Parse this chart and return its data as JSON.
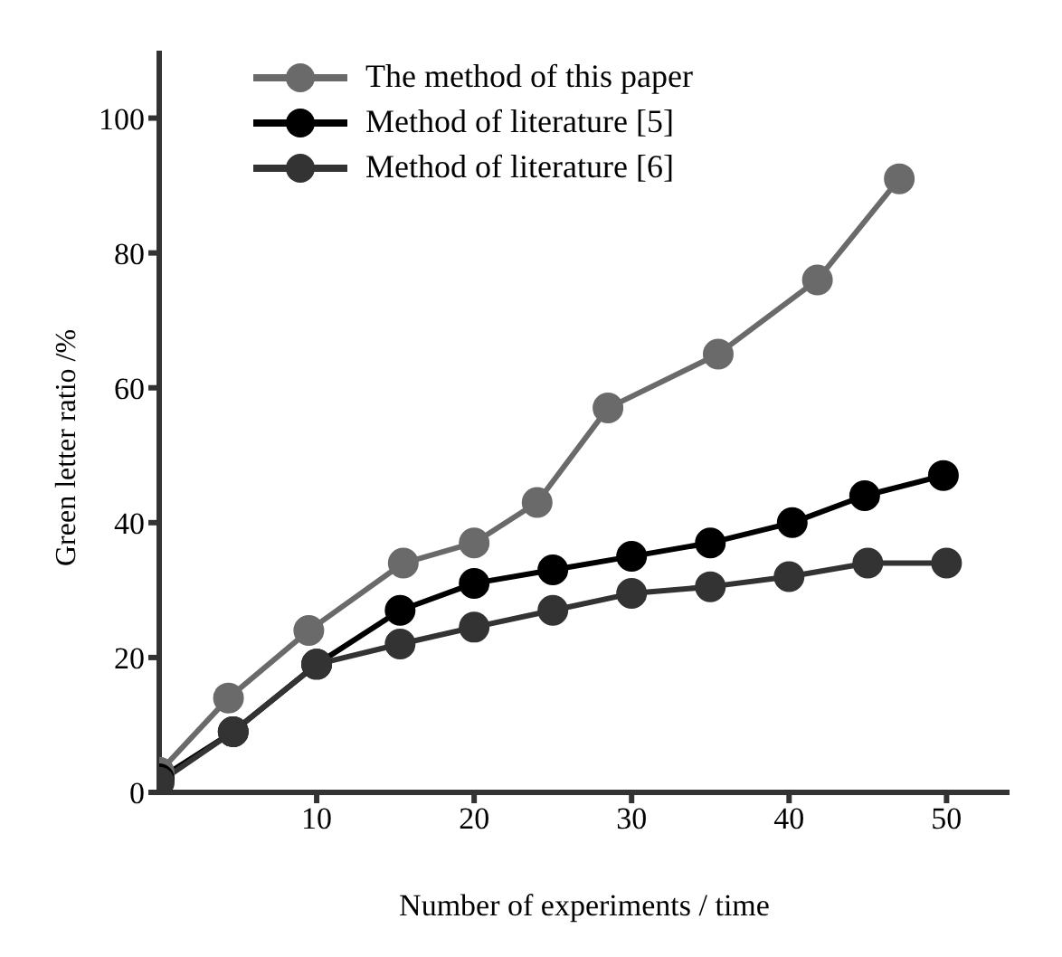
{
  "chart_data": {
    "type": "line",
    "xlabel": "Number of experiments / time",
    "ylabel": "Green letter ratio /%",
    "xlim": [
      0,
      54
    ],
    "xticks": [
      10,
      20,
      30,
      40,
      50
    ],
    "ylim": [
      0,
      110
    ],
    "yticks": [
      0,
      20,
      40,
      60,
      80,
      100
    ],
    "grid": false,
    "legend": "top left",
    "marker": "circle",
    "line_style": "solid",
    "series": [
      {
        "name": "The method of this paper",
        "color": "#6a6a6a",
        "x": [
          0,
          4.4,
          9.5,
          15.5,
          20,
          24,
          28.5,
          35.5,
          41.8,
          47
        ],
        "values": [
          3,
          14,
          24,
          34,
          37,
          43,
          57,
          65,
          76,
          91
        ]
      },
      {
        "name": "Method of literature [5]",
        "color": "#000000",
        "x": [
          0,
          4.7,
          10,
          15.3,
          20,
          25,
          30,
          35,
          40.2,
          44.8,
          49.8
        ],
        "values": [
          2,
          9,
          19,
          27,
          31,
          33,
          35,
          37,
          40,
          44,
          47
        ]
      },
      {
        "name": "Method of literature [6]",
        "color": "#333333",
        "x": [
          0,
          4.7,
          10,
          15.3,
          20,
          25,
          30,
          35,
          40,
          45,
          50
        ],
        "values": [
          1.5,
          9,
          19,
          22,
          24.5,
          27,
          29.5,
          30.5,
          32,
          34,
          34
        ]
      }
    ]
  }
}
